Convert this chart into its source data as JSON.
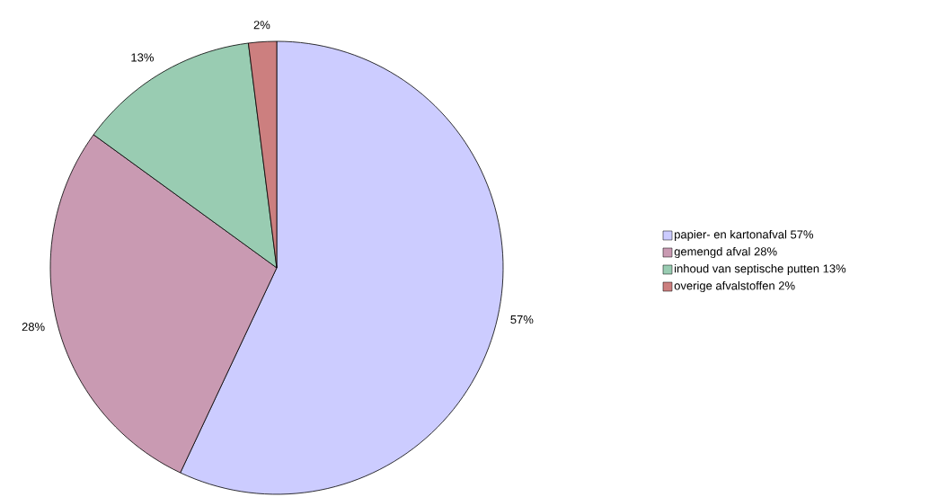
{
  "chart_data": {
    "type": "pie",
    "categories": [
      "papier- en kartonafval 57%",
      "gemengd afval 28%",
      "inhoud van septische putten 13%",
      "overige afvalstoffen 2%"
    ],
    "values": [
      57,
      28,
      13,
      2
    ],
    "value_labels": [
      "57%",
      "28%",
      "13%",
      "2%"
    ],
    "colors": [
      "#ccccff",
      "#c99ab2",
      "#99ccb2",
      "#cc7f7f"
    ],
    "legend": "right"
  }
}
